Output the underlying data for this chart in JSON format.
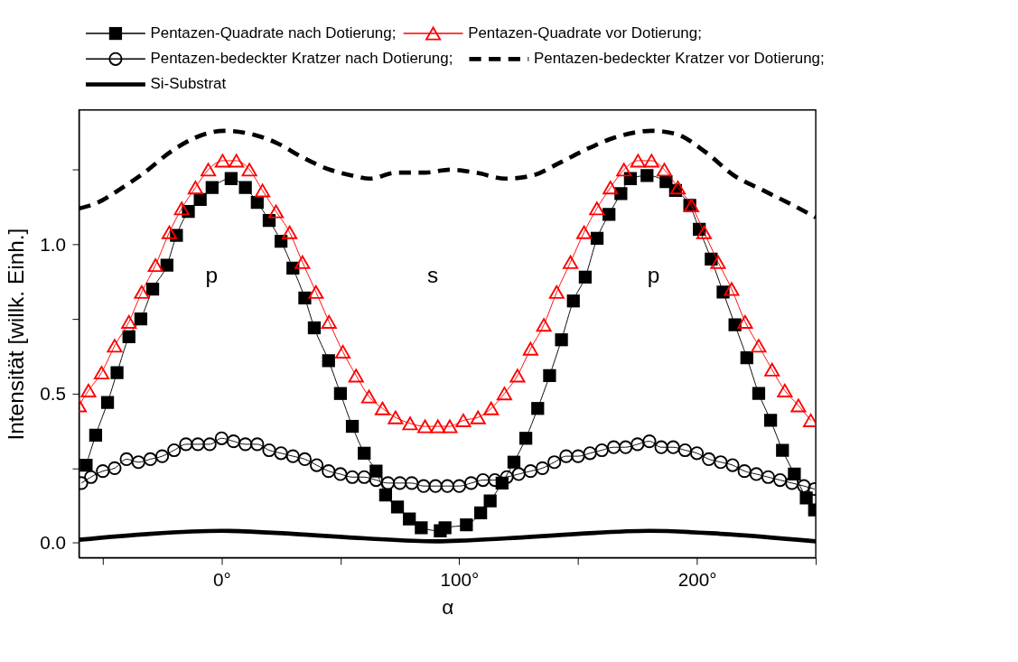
{
  "chart_data": {
    "type": "line",
    "xlabel": "α",
    "ylabel": "Intensität [willk. Einh.]",
    "xlim": [
      -60,
      250
    ],
    "ylim": [
      -0.05,
      1.45
    ],
    "xticks": [
      {
        "value": -50,
        "label": null
      },
      {
        "value": 0,
        "label": "0°"
      },
      {
        "value": 50,
        "label": null
      },
      {
        "value": 100,
        "label": "100°"
      },
      {
        "value": 150,
        "label": null
      },
      {
        "value": 200,
        "label": "200°"
      },
      {
        "value": 250,
        "label": null
      }
    ],
    "yticks": [
      {
        "value": 0,
        "label": "0.0"
      },
      {
        "value": 0.25,
        "label": null
      },
      {
        "value": 0.5,
        "label": "0.5"
      },
      {
        "value": 0.75,
        "label": null
      },
      {
        "value": 1.0,
        "label": "1.0"
      },
      {
        "value": 1.25,
        "label": null
      }
    ],
    "grid": false,
    "legend": "top",
    "annotations": [
      "p",
      "s",
      "p"
    ],
    "series": [
      {
        "name": "Pentazen-Quadrate nach Dotierung;",
        "color": "#000000",
        "marker": "square",
        "line_style": "solid",
        "x": [
          -57,
          -53,
          -48,
          -44,
          -39,
          -34,
          -29,
          -23,
          -19,
          -14,
          -9,
          -4,
          4,
          10,
          15,
          20,
          25,
          30,
          35,
          39,
          45,
          50,
          55,
          60,
          65,
          69,
          74,
          79,
          84,
          92,
          94,
          103,
          109,
          113,
          118,
          123,
          128,
          133,
          138,
          143,
          148,
          153,
          158,
          163,
          168,
          172,
          179,
          187,
          191,
          197,
          201,
          206,
          211,
          216,
          221,
          226,
          231,
          236,
          241,
          246,
          249.5
        ],
        "values": [
          0.26,
          0.36,
          0.47,
          0.57,
          0.69,
          0.75,
          0.85,
          0.93,
          1.03,
          1.11,
          1.15,
          1.19,
          1.22,
          1.19,
          1.14,
          1.08,
          1.01,
          0.92,
          0.82,
          0.72,
          0.61,
          0.5,
          0.39,
          0.3,
          0.24,
          0.16,
          0.12,
          0.08,
          0.05,
          0.04,
          0.05,
          0.06,
          0.1,
          0.14,
          0.2,
          0.27,
          0.35,
          0.45,
          0.56,
          0.68,
          0.81,
          0.89,
          1.02,
          1.1,
          1.17,
          1.22,
          1.23,
          1.21,
          1.18,
          1.13,
          1.05,
          0.95,
          0.84,
          0.73,
          0.62,
          0.5,
          0.41,
          0.31,
          0.23,
          0.15,
          0.11
        ]
      },
      {
        "name": "Pentazen-Quadrate vor Dotierung;",
        "color": "#ff0000",
        "marker": "triangle",
        "line_style": "solid",
        "x": [
          -60,
          -56,
          -50.5,
          -45,
          -39,
          -33.6,
          -27.8,
          -22,
          -16.8,
          -11,
          -5.6,
          0.4,
          6.2,
          11.7,
          17.2,
          22.9,
          28.6,
          34,
          39.7,
          45.2,
          51,
          56.6,
          62,
          67.7,
          73.2,
          79.3,
          85.6,
          91,
          96,
          101.7,
          107.9,
          113.4,
          119,
          124.5,
          130,
          135.6,
          141,
          146.8,
          152.5,
          157.9,
          163.6,
          169.3,
          175.2,
          180.9,
          186.3,
          192,
          197.7,
          203,
          208.9,
          214.6,
          220.3,
          226,
          231.6,
          237,
          242.7,
          247.9
        ],
        "values": [
          0.46,
          0.51,
          0.57,
          0.66,
          0.74,
          0.84,
          0.93,
          1.04,
          1.12,
          1.19,
          1.25,
          1.28,
          1.28,
          1.25,
          1.18,
          1.11,
          1.04,
          0.94,
          0.84,
          0.74,
          0.64,
          0.56,
          0.49,
          0.45,
          0.42,
          0.4,
          0.39,
          0.39,
          0.39,
          0.41,
          0.42,
          0.45,
          0.5,
          0.56,
          0.65,
          0.73,
          0.84,
          0.94,
          1.04,
          1.12,
          1.19,
          1.25,
          1.28,
          1.28,
          1.25,
          1.19,
          1.13,
          1.04,
          0.94,
          0.85,
          0.74,
          0.66,
          0.58,
          0.51,
          0.46,
          0.41
        ]
      },
      {
        "name": "Pentazen-bedeckter Kratzer nach Dotierung;",
        "color": "#000000",
        "marker": "circle",
        "line_style": "solid",
        "x": [
          -59,
          -55,
          -50,
          -45,
          -40,
          -35,
          -30,
          -25,
          -20,
          -15,
          -10,
          -5,
          0,
          5,
          10,
          15,
          20,
          25,
          30,
          35,
          40,
          45,
          50,
          55,
          60,
          65,
          70,
          75,
          80,
          85,
          90,
          95,
          100,
          105,
          110,
          115,
          120,
          125,
          130,
          135,
          140,
          145,
          150,
          155,
          160,
          165,
          170,
          175,
          180,
          185,
          190,
          195,
          200,
          205,
          210,
          215,
          220,
          225,
          230,
          235,
          240,
          245,
          249.5
        ],
        "values": [
          0.2,
          0.22,
          0.24,
          0.25,
          0.28,
          0.27,
          0.28,
          0.29,
          0.31,
          0.33,
          0.33,
          0.33,
          0.35,
          0.34,
          0.33,
          0.33,
          0.31,
          0.3,
          0.29,
          0.28,
          0.26,
          0.24,
          0.23,
          0.22,
          0.22,
          0.21,
          0.2,
          0.2,
          0.2,
          0.19,
          0.19,
          0.19,
          0.19,
          0.2,
          0.21,
          0.21,
          0.22,
          0.23,
          0.24,
          0.25,
          0.27,
          0.29,
          0.29,
          0.3,
          0.31,
          0.32,
          0.32,
          0.33,
          0.34,
          0.32,
          0.32,
          0.31,
          0.3,
          0.28,
          0.27,
          0.26,
          0.24,
          0.23,
          0.22,
          0.21,
          0.2,
          0.19,
          0.18
        ]
      },
      {
        "name": "Pentazen-bedeckter Kratzer vor Dotierung;",
        "color": "#000000",
        "marker": "none",
        "line_style": "dashed",
        "x": [
          -60,
          -52,
          -43.6,
          -32.5,
          -21.4,
          -10.2,
          0.9,
          12,
          23,
          34.3,
          45.4,
          55,
          62.4,
          73.5,
          85.8,
          96,
          107,
          119.5,
          130.6,
          141.6,
          154,
          166.4,
          181,
          191,
          203.4,
          215.7,
          228,
          240.6,
          250
        ],
        "values": [
          1.12,
          1.14,
          1.18,
          1.24,
          1.31,
          1.36,
          1.38,
          1.37,
          1.34,
          1.29,
          1.25,
          1.23,
          1.22,
          1.24,
          1.24,
          1.25,
          1.24,
          1.22,
          1.23,
          1.27,
          1.32,
          1.36,
          1.38,
          1.37,
          1.31,
          1.23,
          1.18,
          1.13,
          1.09
        ]
      },
      {
        "name": "Si-Substrat",
        "color": "#000000",
        "marker": "none",
        "line_style": "solid",
        "x": [
          -60,
          -30,
          0,
          30,
          60,
          90,
          120,
          150,
          180,
          210,
          250
        ],
        "values": [
          0.01,
          0.03,
          0.04,
          0.03,
          0.015,
          0.005,
          0.015,
          0.03,
          0.04,
          0.03,
          0.005
        ]
      }
    ]
  }
}
